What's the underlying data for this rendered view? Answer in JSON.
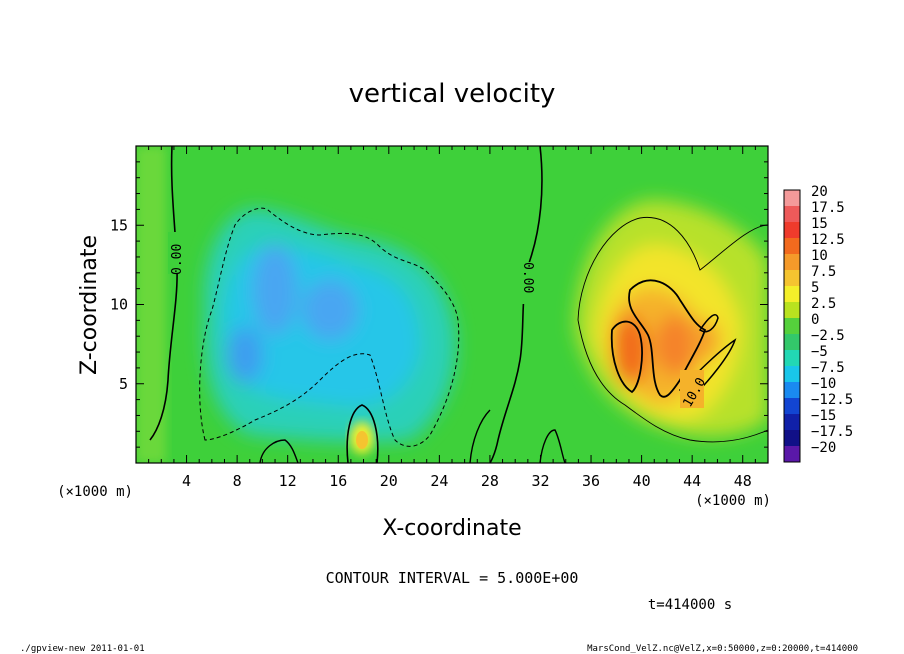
{
  "chart_data": {
    "type": "heatmap",
    "title": "vertical velocity",
    "xlabel": "X-coordinate",
    "ylabel": "Z-coordinate",
    "x_unit_label": "(×1000 m)",
    "y_unit_label": "(×1000 m)",
    "xlim": [
      0,
      50
    ],
    "ylim": [
      0,
      20
    ],
    "x_ticks": [
      "4",
      "8",
      "12",
      "16",
      "20",
      "24",
      "28",
      "32",
      "36",
      "40",
      "44",
      "48"
    ],
    "y_ticks": [
      "5",
      "10",
      "15"
    ],
    "colorbar": {
      "labels": [
        "20",
        "17.5",
        "15",
        "12.5",
        "10",
        "7.5",
        "5",
        "2.5",
        "0",
        "-2.5",
        "-5",
        "-7.5",
        "-10",
        "-12.5",
        "-15",
        "-17.5",
        "-20"
      ],
      "colors": [
        "#f49a9a",
        "#ee5a5a",
        "#ef3b2c",
        "#f26a1e",
        "#f59a2a",
        "#f5c430",
        "#f4ef2a",
        "#b9e21f",
        "#55d13c",
        "#33c86a",
        "#22d8b4",
        "#19c6ea",
        "#1a8af0",
        "#1245d2",
        "#1020a8",
        "#111087",
        "#5a18a8"
      ]
    },
    "contour_labels": [
      "0.00",
      "0.00",
      "10.0"
    ],
    "contour_interval_text": "CONTOUR INTERVAL = 5.000E+00",
    "time_text": "t=414000 s"
  },
  "footer": {
    "left": "./gpview-new  2011-01-01",
    "right": "MarsCond_VelZ.nc@VelZ,x=0:50000,z=0:20000,t=414000"
  },
  "colors": {
    "background_field": "#3ed03a",
    "updraft_core": "#f26a1e",
    "downdraft_core": "#2aa6f0"
  }
}
